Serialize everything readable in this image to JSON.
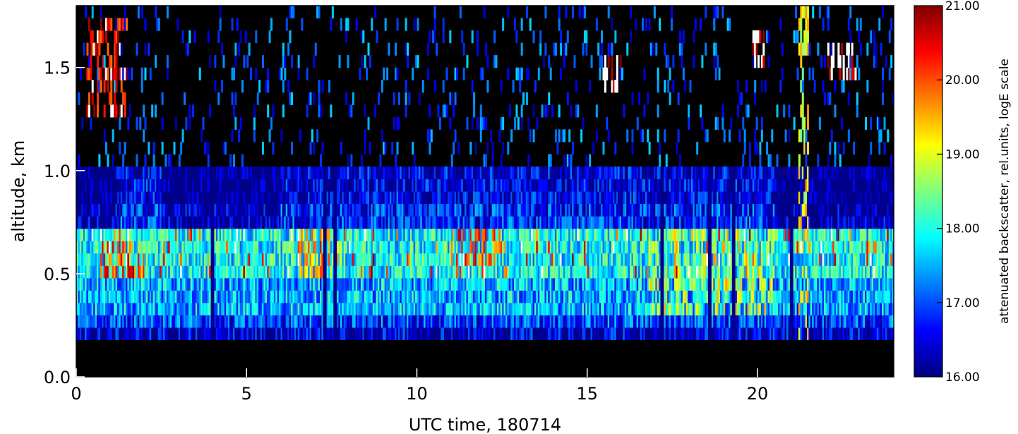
{
  "chart_data": {
    "type": "heatmap",
    "title": "",
    "xlabel": "UTC time, 180714",
    "ylabel": "altitude, km",
    "xlim": [
      0,
      24
    ],
    "ylim": [
      0,
      1.8
    ],
    "x_ticks": [
      0,
      5,
      10,
      15,
      20
    ],
    "x_tick_labels": [
      "0",
      "5",
      "10",
      "15",
      "20"
    ],
    "y_ticks": [
      0.0,
      0.5,
      1.0,
      1.5
    ],
    "y_tick_labels": [
      "0.0",
      "0.5",
      "1.0",
      "1.5"
    ],
    "colorbar": {
      "label": "attenuated backscatter, rel.units, logE scale",
      "range": [
        16.0,
        21.0
      ],
      "ticks": [
        16,
        17,
        18,
        19,
        20,
        21
      ],
      "tick_labels": [
        "16.00",
        "17.00",
        "18.00",
        "19.00",
        "20.00",
        "21.00"
      ],
      "colormap": [
        "#00007f",
        "#0000ff",
        "#007fff",
        "#00ffff",
        "#7fff7f",
        "#ffff00",
        "#ff7f00",
        "#ff0000",
        "#7f0000"
      ],
      "above_max_color": "#ffffff",
      "below_min_color": "#000000"
    },
    "grid": false,
    "layers": [
      {
        "alt": [
          0.0,
          0.17
        ],
        "value": 15.0
      },
      {
        "alt": [
          0.17,
          0.22
        ],
        "value": 16.4
      },
      {
        "alt": [
          0.22,
          0.28
        ],
        "value": 16.9
      },
      {
        "alt": [
          0.28,
          0.45
        ],
        "value": 17.5
      },
      {
        "alt": [
          0.45,
          0.7
        ],
        "value": 17.9
      },
      {
        "alt": [
          0.7,
          0.87
        ],
        "value": 16.8
      },
      {
        "alt": [
          0.87,
          1.05
        ],
        "value": 16.5
      }
    ],
    "dark_gaps_utc": [
      4.0,
      7.3,
      7.6,
      17.2,
      18.6,
      19.3,
      21.0
    ],
    "cloud_features": [
      {
        "time": [
          0.3,
          1.5
        ],
        "alt": [
          1.25,
          1.75
        ],
        "value": 20.5
      },
      {
        "time": [
          15.4,
          16.0
        ],
        "alt": [
          1.4,
          1.55
        ],
        "value": 21.2
      },
      {
        "time": [
          19.8,
          20.2
        ],
        "alt": [
          1.5,
          1.7
        ],
        "value": 21.2
      },
      {
        "time": [
          22.0,
          22.9
        ],
        "alt": [
          1.45,
          1.6
        ],
        "value": 21.2
      },
      {
        "time": [
          21.2,
          21.5
        ],
        "alt": [
          0.17,
          1.8
        ],
        "value": 19.0
      },
      {
        "time": [
          0.7,
          2.0
        ],
        "alt": [
          0.45,
          0.65
        ],
        "value": 20.0
      },
      {
        "time": [
          6.5,
          7.8
        ],
        "alt": [
          0.45,
          0.75
        ],
        "value": 19.5
      },
      {
        "time": [
          11.0,
          12.5
        ],
        "alt": [
          0.55,
          0.75
        ],
        "value": 20.0
      },
      {
        "time": [
          16.8,
          20.5
        ],
        "alt": [
          0.3,
          0.75
        ],
        "value": 18.9
      }
    ]
  }
}
